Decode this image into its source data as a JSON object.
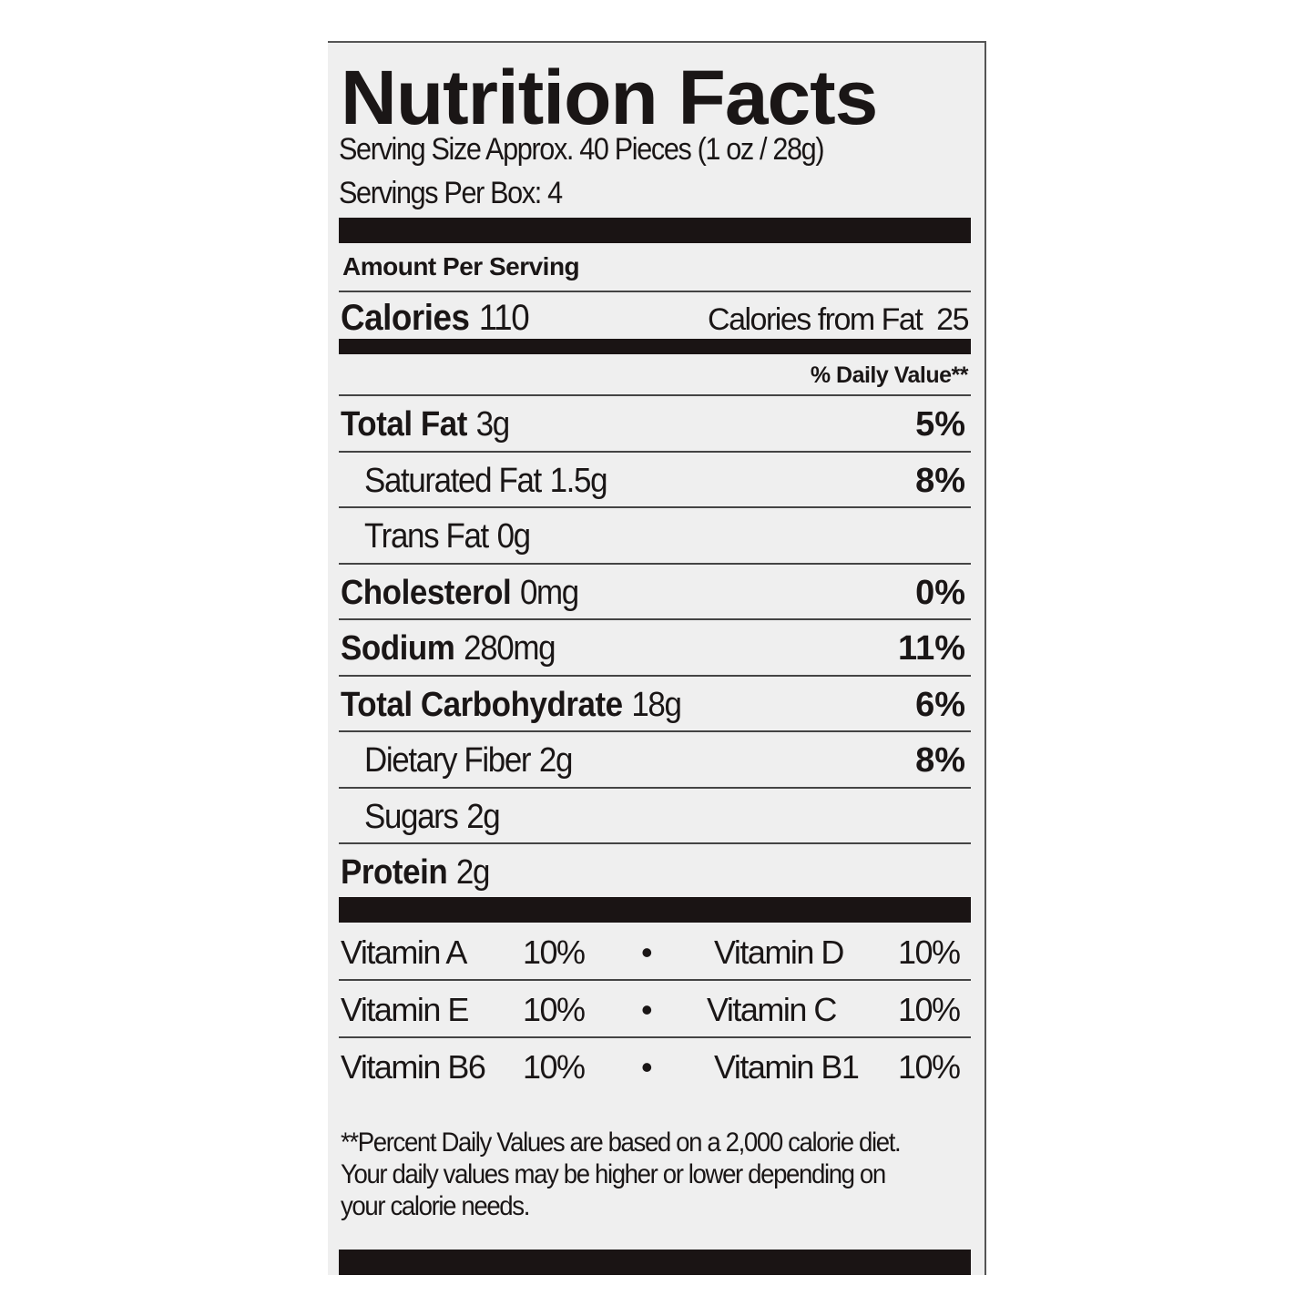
{
  "title": "Nutrition Facts",
  "serving_size": "Serving Size Approx. 40 Pieces (1 oz / 28g)",
  "servings_per": "Servings Per Box: 4",
  "amount_per_serving": "Amount Per Serving",
  "calories": {
    "label": "Calories",
    "value": "110",
    "from_fat_label": "Calories from Fat",
    "from_fat_value": "25"
  },
  "daily_value_header": "% Daily Value**",
  "nutrients": [
    {
      "label": "Total Fat",
      "amount": "3g",
      "dv": "5%",
      "bold": true
    },
    {
      "label": "Saturated Fat",
      "amount": "1.5g",
      "dv": "8%",
      "bold": false
    },
    {
      "label": "Trans Fat",
      "amount": "0g",
      "dv": "",
      "bold": false
    },
    {
      "label": "Cholesterol",
      "amount": "0mg",
      "dv": "0%",
      "bold": true
    },
    {
      "label": "Sodium",
      "amount": "280mg",
      "dv": "11%",
      "bold": true
    },
    {
      "label": "Total Carbohydrate",
      "amount": "18g",
      "dv": "6%",
      "bold": true
    },
    {
      "label": "Dietary Fiber",
      "amount": "2g",
      "dv": "8%",
      "bold": false
    },
    {
      "label": "Sugars",
      "amount": "2g",
      "dv": "",
      "bold": false
    },
    {
      "label": "Protein",
      "amount": "2g",
      "dv": "",
      "bold": true
    }
  ],
  "vitamins": [
    {
      "left_name": "Vitamin A",
      "left_value": "10%",
      "sep": "•",
      "right_name": "Vitamin D",
      "right_value": "10%"
    },
    {
      "left_name": "Vitamin E",
      "left_value": "10%",
      "sep": "•",
      "right_name": "Vitamin C",
      "right_value": "10%"
    },
    {
      "left_name": "Vitamin B6",
      "left_value": "10%",
      "sep": "•",
      "right_name": "Vitamin B1",
      "right_value": "10%"
    }
  ],
  "footnote": "**Percent Daily Values are based on a 2,000 calorie diet.  Your daily values may be higher or lower depending on your calorie needs."
}
